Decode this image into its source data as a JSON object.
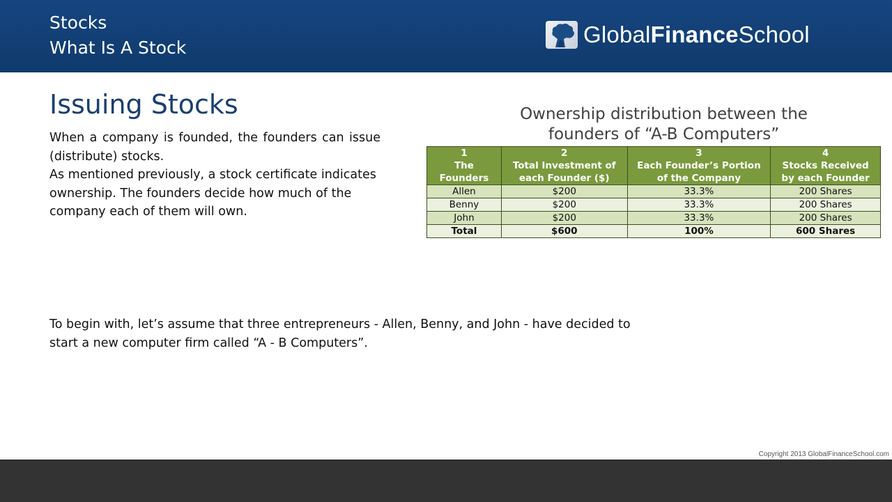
{
  "header": {
    "title": "Stocks",
    "subtitle": "What Is A Stock",
    "logo": {
      "text_regular_1": "Global",
      "text_bold": "Finance",
      "text_regular_2": "School",
      "icon": "tree-logo-icon"
    }
  },
  "main": {
    "heading": "Issuing Stocks",
    "paragraph_1": "When a company is founded, the founders can issue (distribute) stocks.",
    "paragraph_2": "As mentioned previously, a stock certificate indicates ownership. The founders decide how much of the company each of them will own.",
    "bottom_text": "To begin with, let’s assume that three entrepreneurs - Allen, Benny, and John - have decided to start a new computer firm called “A - B Computers”."
  },
  "table": {
    "caption_line_1": "Ownership distribution between the",
    "caption_line_2": "founders of “A-B Computers”",
    "columns": [
      {
        "number": "1",
        "line1": "The",
        "line2": "Founders"
      },
      {
        "number": "2",
        "line1": "Total Investment of",
        "line2": "each Founder ($)"
      },
      {
        "number": "3",
        "line1": "Each Founder’s Portion",
        "line2": "of the Company"
      },
      {
        "number": "4",
        "line1": "Stocks Received",
        "line2": "by each Founder"
      }
    ],
    "rows": [
      [
        "Allen",
        "$200",
        "33.3%",
        "200 Shares"
      ],
      [
        "Benny",
        "$200",
        "33.3%",
        "200 Shares"
      ],
      [
        "John",
        "$200",
        "33.3%",
        "200 Shares"
      ]
    ],
    "total_row": [
      "Total",
      "$600",
      "100%",
      "600 Shares"
    ]
  },
  "footer": {
    "copyright": "Copyright 2013 GlobalFinanceSchool.com"
  },
  "colors": {
    "header_bg": "#16457f",
    "heading": "#1b3f70",
    "table_header": "#7a9a3d",
    "row_dark": "#d6e3bc",
    "row_light": "#ebf1de",
    "footer_bg": "#333333"
  }
}
